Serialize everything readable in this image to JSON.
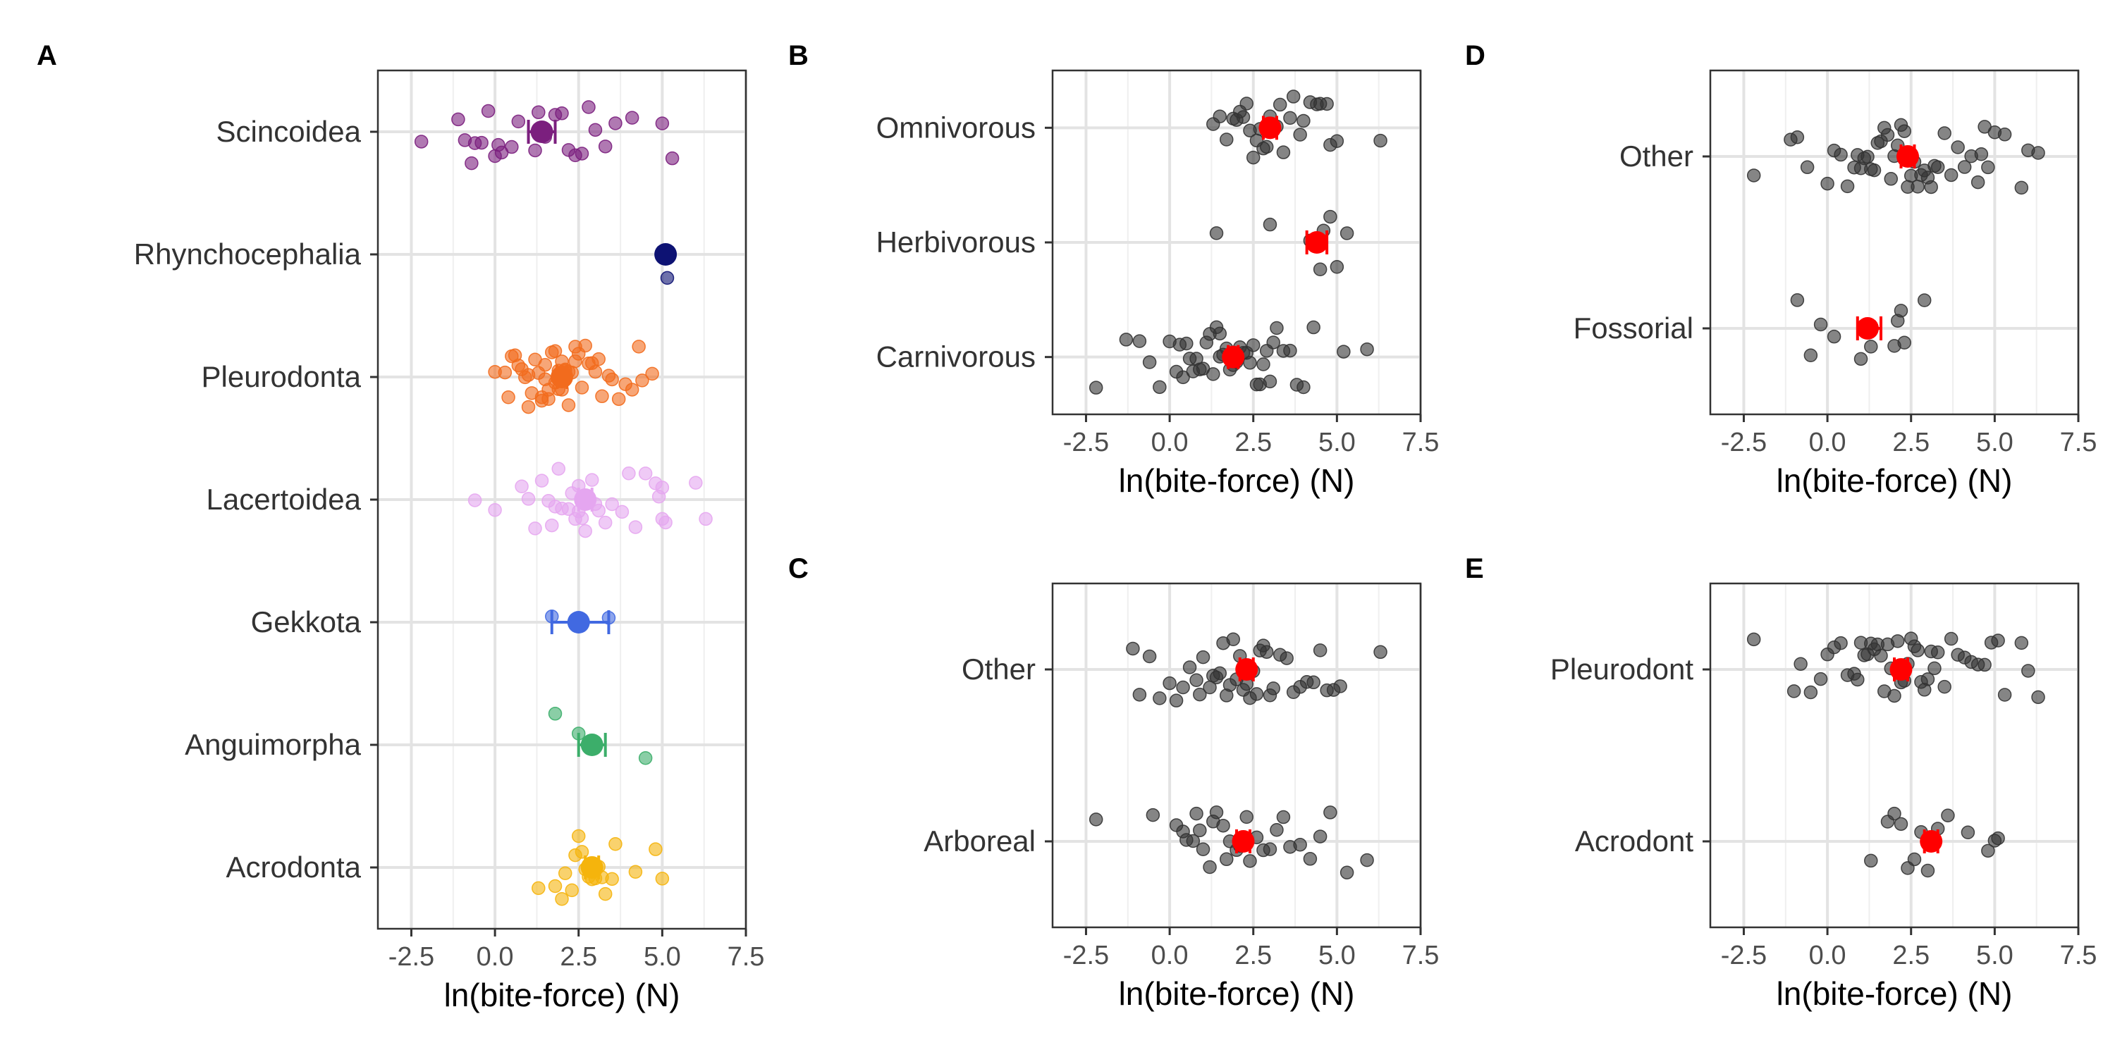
{
  "chart_data": [
    {
      "panel": "A",
      "type": "scatter",
      "xlabel": "ln(bite-force) (N)",
      "xlim": [
        -3.5,
        7.5
      ],
      "xticks": [
        "-2.5",
        "0.0",
        "2.5",
        "5.0",
        "7.5"
      ],
      "xtick_values": [
        -2.5,
        0,
        2.5,
        5,
        7.5
      ],
      "grid": true,
      "categories": [
        "Scincoidea",
        "Rhynchocephalia",
        "Pleurodonta",
        "Lacertoidea",
        "Gekkota",
        "Anguimorpha",
        "Acrodonta"
      ],
      "colors": [
        "#7b1f7e",
        "#0d1273",
        "#f26b1d",
        "#e5a6f0",
        "#4169e1",
        "#3cae6a",
        "#f5b40c"
      ],
      "series": [
        {
          "name": "Scincoidea",
          "mean": 1.4,
          "ci": [
            1.0,
            1.8
          ],
          "points": [
            -2.2,
            -1.1,
            -0.9,
            -0.7,
            -0.6,
            -0.4,
            -0.2,
            0.0,
            0.1,
            0.2,
            0.5,
            0.7,
            1.2,
            1.3,
            1.5,
            1.8,
            2.0,
            2.2,
            2.4,
            2.6,
            2.8,
            3.0,
            3.3,
            3.6,
            4.1,
            5.0,
            5.3
          ]
        },
        {
          "name": "Rhynchocephalia",
          "mean": 5.1,
          "ci": [
            5.1,
            5.1
          ],
          "points": [
            5.15
          ]
        },
        {
          "name": "Pleurodonta",
          "mean": 2.0,
          "ci": [
            1.85,
            2.15
          ],
          "points": [
            0.0,
            0.3,
            0.4,
            0.5,
            0.6,
            0.7,
            0.8,
            0.9,
            1.0,
            1.0,
            1.1,
            1.2,
            1.3,
            1.4,
            1.4,
            1.5,
            1.5,
            1.6,
            1.6,
            1.7,
            1.8,
            1.8,
            1.9,
            1.9,
            2.0,
            2.0,
            2.1,
            2.1,
            2.2,
            2.2,
            2.3,
            2.4,
            2.4,
            2.5,
            2.6,
            2.7,
            2.8,
            2.9,
            3.0,
            3.1,
            3.2,
            3.4,
            3.5,
            3.7,
            3.9,
            4.1,
            4.3,
            4.4,
            4.7
          ]
        },
        {
          "name": "Lacertoidea",
          "mean": 2.7,
          "ci": [
            2.5,
            2.9
          ],
          "points": [
            -0.6,
            0.0,
            0.8,
            1.0,
            1.2,
            1.4,
            1.6,
            1.7,
            1.8,
            1.9,
            2.0,
            2.2,
            2.3,
            2.4,
            2.5,
            2.5,
            2.6,
            2.7,
            2.8,
            2.9,
            3.0,
            3.1,
            3.3,
            3.5,
            3.8,
            4.0,
            4.2,
            4.5,
            4.8,
            4.9,
            5.0,
            5.0,
            5.1,
            6.0,
            6.3
          ]
        },
        {
          "name": "Gekkota",
          "mean": 2.5,
          "ci": [
            1.7,
            3.4
          ],
          "points": [
            1.7,
            3.4
          ]
        },
        {
          "name": "Anguimorpha",
          "mean": 2.9,
          "ci": [
            2.5,
            3.3
          ],
          "points": [
            1.8,
            2.5,
            4.5
          ]
        },
        {
          "name": "Acrodonta",
          "mean": 2.9,
          "ci": [
            2.7,
            3.1
          ],
          "points": [
            1.3,
            1.8,
            2.0,
            2.1,
            2.3,
            2.4,
            2.5,
            2.6,
            2.7,
            2.8,
            2.9,
            3.0,
            3.1,
            3.2,
            3.3,
            3.5,
            3.6,
            4.2,
            4.8,
            5.0
          ]
        }
      ]
    },
    {
      "panel": "B",
      "type": "scatter",
      "xlabel": "ln(bite-force) (N)",
      "xlim": [
        -3.5,
        7.5
      ],
      "xticks": [
        "-2.5",
        "0.0",
        "2.5",
        "5.0",
        "7.5"
      ],
      "xtick_values": [
        -2.5,
        0,
        2.5,
        5,
        7.5
      ],
      "grid": true,
      "categories": [
        "Omnivorous",
        "Herbivorous",
        "Carnivorous"
      ],
      "point_color": "#333333",
      "mean_color": "#ff0000",
      "series": [
        {
          "name": "Omnivorous",
          "mean": 3.0,
          "ci": [
            2.8,
            3.2
          ],
          "points": [
            1.3,
            1.5,
            1.7,
            1.9,
            2.0,
            2.1,
            2.2,
            2.3,
            2.4,
            2.5,
            2.6,
            2.7,
            2.8,
            2.9,
            3.0,
            3.1,
            3.2,
            3.3,
            3.4,
            3.6,
            3.7,
            3.9,
            4.0,
            4.2,
            4.4,
            4.5,
            4.7,
            4.8,
            5.0,
            6.3
          ]
        },
        {
          "name": "Herbivorous",
          "mean": 4.4,
          "ci": [
            4.1,
            4.7
          ],
          "points": [
            1.4,
            3.0,
            4.2,
            4.5,
            4.6,
            4.8,
            5.0,
            5.3
          ]
        },
        {
          "name": "Carnivorous",
          "mean": 1.9,
          "ci": [
            1.75,
            2.05
          ],
          "points": [
            -2.2,
            -1.3,
            -0.9,
            -0.6,
            -0.3,
            0.0,
            0.2,
            0.3,
            0.4,
            0.5,
            0.6,
            0.7,
            0.8,
            0.9,
            1.0,
            1.1,
            1.2,
            1.3,
            1.4,
            1.5,
            1.5,
            1.6,
            1.7,
            1.8,
            1.9,
            2.0,
            2.1,
            2.2,
            2.3,
            2.4,
            2.5,
            2.6,
            2.7,
            2.8,
            2.9,
            3.0,
            3.1,
            3.2,
            3.4,
            3.6,
            3.8,
            4.0,
            4.3,
            5.2,
            5.9
          ]
        }
      ]
    },
    {
      "panel": "C",
      "type": "scatter",
      "xlabel": "ln(bite-force) (N)",
      "xlim": [
        -3.5,
        7.5
      ],
      "xticks": [
        "-2.5",
        "0.0",
        "2.5",
        "5.0",
        "7.5"
      ],
      "xtick_values": [
        -2.5,
        0,
        2.5,
        5,
        7.5
      ],
      "grid": true,
      "categories": [
        "Other",
        "Arboreal"
      ],
      "point_color": "#333333",
      "mean_color": "#ff0000",
      "series": [
        {
          "name": "Other",
          "mean": 2.3,
          "ci": [
            2.1,
            2.5
          ],
          "points": [
            -1.1,
            -0.9,
            -0.6,
            -0.3,
            0.0,
            0.2,
            0.4,
            0.6,
            0.8,
            0.9,
            1.0,
            1.2,
            1.3,
            1.4,
            1.5,
            1.6,
            1.7,
            1.8,
            1.9,
            2.0,
            2.1,
            2.2,
            2.3,
            2.4,
            2.5,
            2.6,
            2.7,
            2.8,
            2.9,
            3.0,
            3.1,
            3.3,
            3.5,
            3.7,
            3.9,
            4.1,
            4.3,
            4.5,
            4.7,
            4.9,
            5.1,
            6.3
          ]
        },
        {
          "name": "Arboreal",
          "mean": 2.2,
          "ci": [
            2.0,
            2.4
          ],
          "points": [
            -2.2,
            -0.5,
            0.2,
            0.4,
            0.5,
            0.7,
            0.8,
            0.9,
            1.0,
            1.2,
            1.3,
            1.4,
            1.6,
            1.7,
            1.8,
            2.0,
            2.1,
            2.3,
            2.4,
            2.6,
            2.8,
            3.0,
            3.2,
            3.4,
            3.6,
            3.9,
            4.2,
            4.5,
            4.8,
            5.3,
            5.9
          ]
        }
      ]
    },
    {
      "panel": "D",
      "type": "scatter",
      "xlabel": "ln(bite-force) (N)",
      "xlim": [
        -3.5,
        7.5
      ],
      "xticks": [
        "-2.5",
        "0.0",
        "2.5",
        "5.0",
        "7.5"
      ],
      "xtick_values": [
        -2.5,
        0,
        2.5,
        5,
        7.5
      ],
      "grid": true,
      "categories": [
        "Other",
        "Fossorial"
      ],
      "point_color": "#333333",
      "mean_color": "#ff0000",
      "series": [
        {
          "name": "Other",
          "mean": 2.4,
          "ci": [
            2.2,
            2.6
          ],
          "points": [
            -2.2,
            -1.1,
            -0.9,
            -0.6,
            0.0,
            0.2,
            0.4,
            0.6,
            0.8,
            0.9,
            1.0,
            1.1,
            1.2,
            1.3,
            1.4,
            1.5,
            1.6,
            1.7,
            1.8,
            1.9,
            2.0,
            2.1,
            2.2,
            2.3,
            2.4,
            2.5,
            2.6,
            2.7,
            2.8,
            2.9,
            3.0,
            3.1,
            3.2,
            3.3,
            3.5,
            3.7,
            3.9,
            4.1,
            4.3,
            4.5,
            4.6,
            4.7,
            4.8,
            5.0,
            5.3,
            5.8,
            6.0,
            6.3
          ]
        },
        {
          "name": "Fossorial",
          "mean": 1.2,
          "ci": [
            0.9,
            1.6
          ],
          "points": [
            -0.9,
            -0.5,
            -0.2,
            0.2,
            1.0,
            1.3,
            2.0,
            2.1,
            2.2,
            2.3,
            2.9
          ]
        }
      ]
    },
    {
      "panel": "E",
      "type": "scatter",
      "xlabel": "ln(bite-force) (N)",
      "xlim": [
        -3.5,
        7.5
      ],
      "xticks": [
        "-2.5",
        "0.0",
        "2.5",
        "5.0",
        "7.5"
      ],
      "xtick_values": [
        -2.5,
        0,
        2.5,
        5,
        7.5
      ],
      "grid": true,
      "categories": [
        "Pleurodont",
        "Acrodont"
      ],
      "point_color": "#333333",
      "mean_color": "#ff0000",
      "series": [
        {
          "name": "Pleurodont",
          "mean": 2.2,
          "ci": [
            2.0,
            2.4
          ],
          "points": [
            -2.2,
            -1.0,
            -0.8,
            -0.5,
            -0.2,
            0.0,
            0.2,
            0.4,
            0.6,
            0.8,
            0.9,
            1.0,
            1.1,
            1.2,
            1.3,
            1.4,
            1.5,
            1.6,
            1.7,
            1.8,
            1.9,
            2.0,
            2.1,
            2.2,
            2.3,
            2.4,
            2.5,
            2.6,
            2.7,
            2.8,
            2.9,
            3.0,
            3.1,
            3.2,
            3.3,
            3.5,
            3.7,
            3.9,
            4.1,
            4.3,
            4.5,
            4.7,
            4.9,
            5.1,
            5.3,
            5.8,
            6.0,
            6.3
          ]
        },
        {
          "name": "Acrodont",
          "mean": 3.1,
          "ci": [
            2.9,
            3.3
          ],
          "points": [
            1.3,
            1.8,
            2.0,
            2.2,
            2.4,
            2.6,
            2.8,
            3.0,
            3.3,
            3.6,
            4.2,
            4.8,
            5.0,
            5.1
          ]
        }
      ]
    }
  ]
}
